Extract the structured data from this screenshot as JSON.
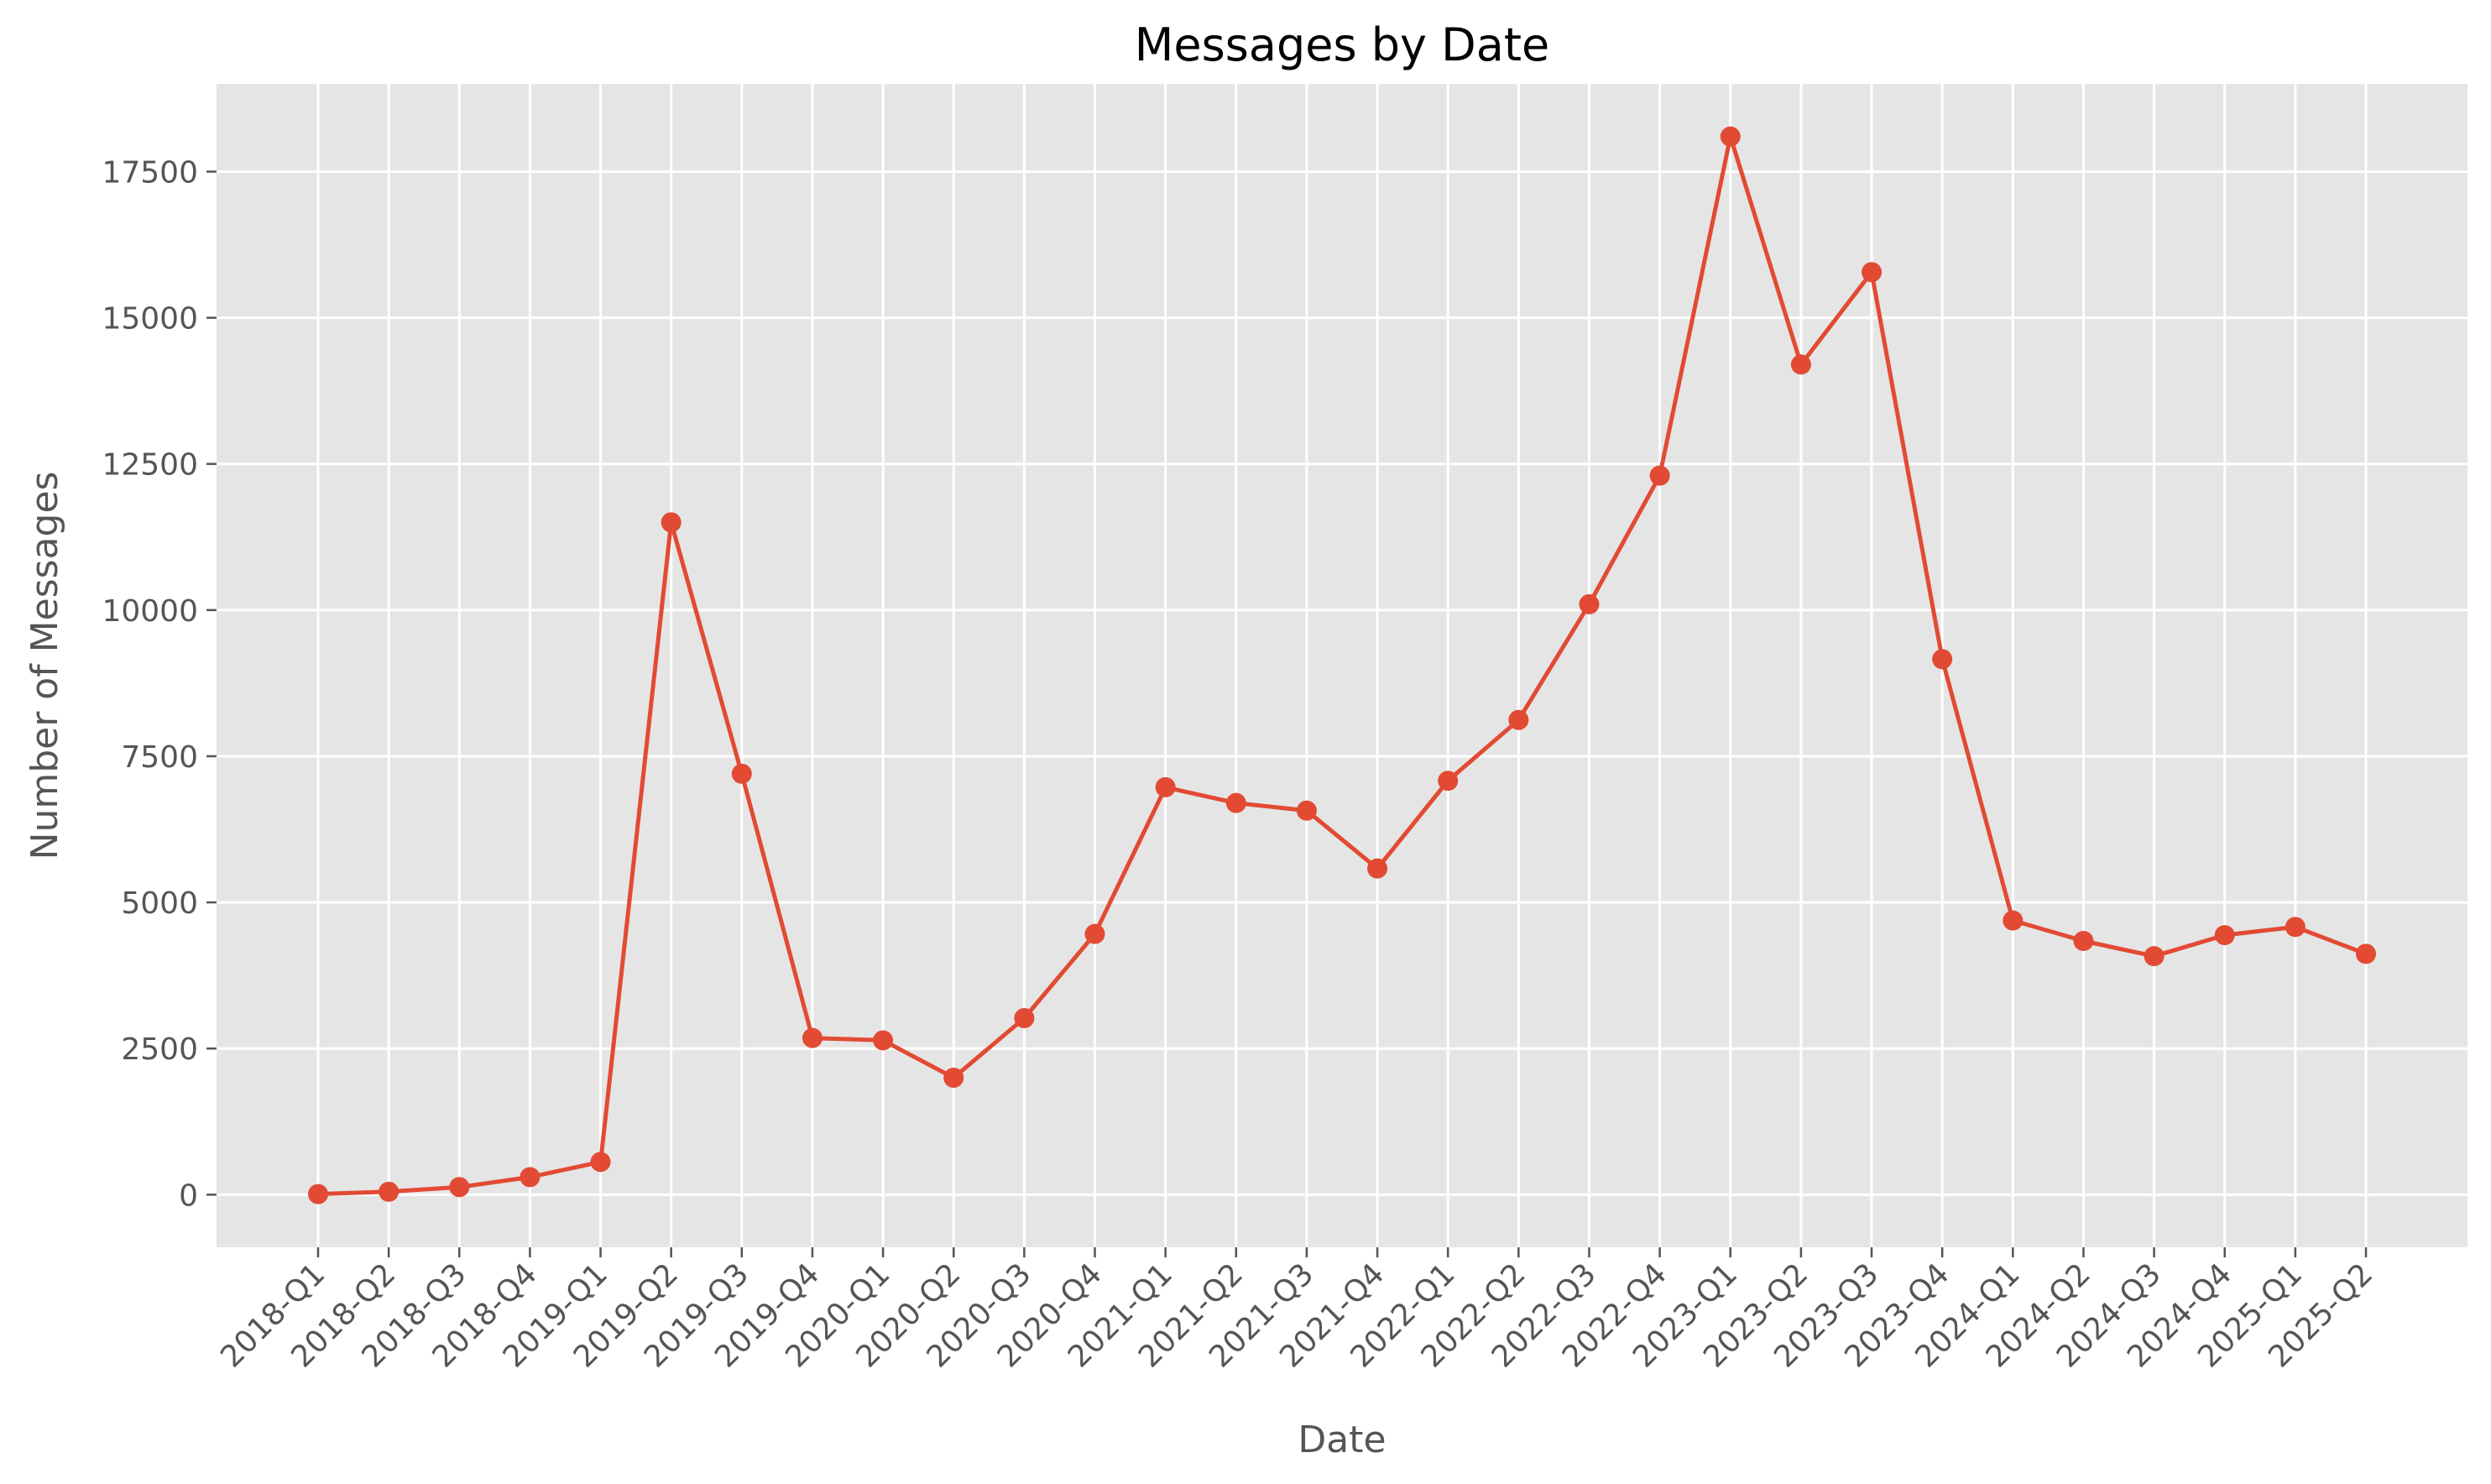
{
  "chart_data": {
    "type": "line",
    "title": "Messages by Date",
    "xlabel": "Date",
    "ylabel": "Number of Messages",
    "categories": [
      "2018-Q1",
      "2018-Q2",
      "2018-Q3",
      "2018-Q4",
      "2019-Q1",
      "2019-Q2",
      "2019-Q3",
      "2019-Q4",
      "2020-Q1",
      "2020-Q2",
      "2020-Q3",
      "2020-Q4",
      "2021-Q1",
      "2021-Q2",
      "2021-Q3",
      "2021-Q4",
      "2022-Q1",
      "2022-Q2",
      "2022-Q3",
      "2022-Q4",
      "2023-Q1",
      "2023-Q2",
      "2023-Q3",
      "2023-Q4",
      "2024-Q1",
      "2024-Q2",
      "2024-Q3",
      "2024-Q4",
      "2025-Q1",
      "2025-Q2"
    ],
    "series": [
      {
        "values": [
          10,
          50,
          130,
          300,
          560,
          11500,
          7200,
          2680,
          2640,
          2000,
          3020,
          4460,
          6970,
          6700,
          6570,
          5580,
          7080,
          8120,
          10100,
          12300,
          18100,
          14200,
          15780,
          9160,
          4690,
          4340,
          4080,
          4440,
          4580,
          4120
        ],
        "color": "#E24A33"
      }
    ],
    "ylim": [
      -900,
      19000
    ],
    "yticks": [
      0,
      2500,
      5000,
      7500,
      10000,
      12500,
      15000,
      17500
    ],
    "ytick_labels": [
      "0",
      "2500",
      "5000",
      "7500",
      "10000",
      "12500",
      "15000",
      "17500"
    ],
    "grid": true,
    "style": "ggplot",
    "colors": {
      "background": "#E5E5E5",
      "grid": "#FFFFFF",
      "line": "#E24A33",
      "text": "#555555"
    }
  }
}
